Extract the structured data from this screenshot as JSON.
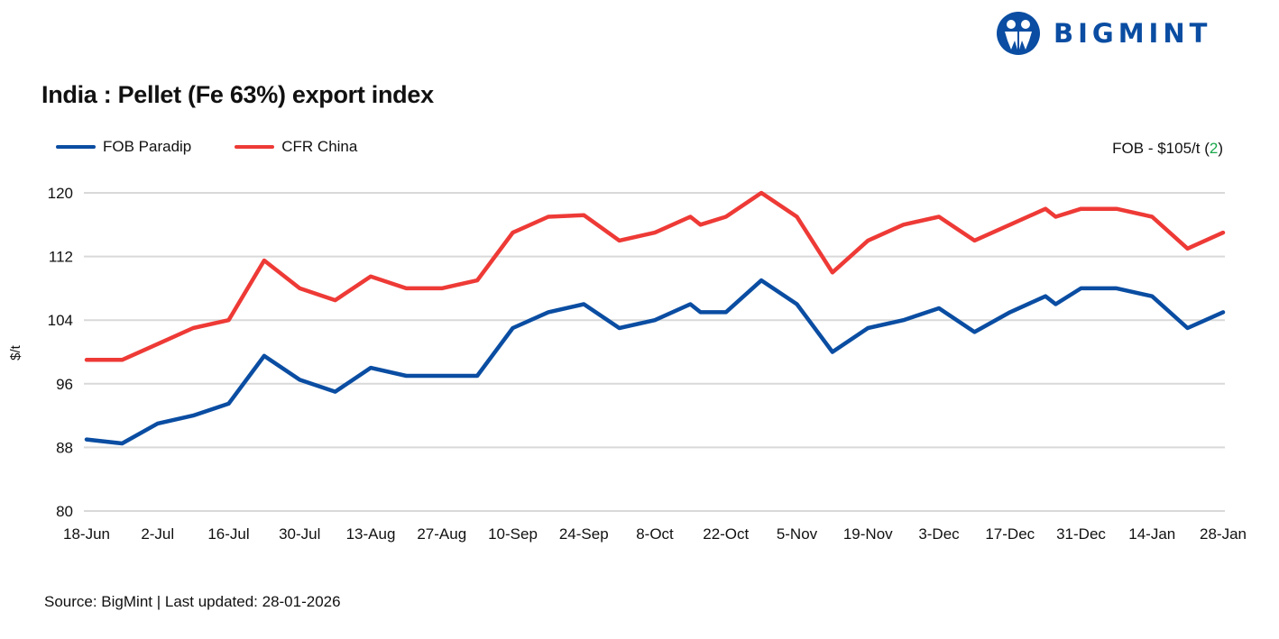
{
  "brand": {
    "name": "BIGMINT",
    "color": "#0a4da2"
  },
  "chart_data": {
    "type": "line",
    "title": "India : Pellet (Fe 63%) export index",
    "ylabel": "$/t",
    "xlabel": "",
    "ylim": [
      80,
      120
    ],
    "yticks": [
      "80",
      "88",
      "96",
      "104",
      "112",
      "120"
    ],
    "grid": true,
    "legend_position": "top-left",
    "xticks": [
      {
        "date": "2025-06-18",
        "label": "18-Jun"
      },
      {
        "date": "2025-07-02",
        "label": "2-Jul"
      },
      {
        "date": "2025-07-16",
        "label": "16-Jul"
      },
      {
        "date": "2025-07-30",
        "label": "30-Jul"
      },
      {
        "date": "2025-08-13",
        "label": "13-Aug"
      },
      {
        "date": "2025-08-27",
        "label": "27-Aug"
      },
      {
        "date": "2025-09-10",
        "label": "10-Sep"
      },
      {
        "date": "2025-09-24",
        "label": "24-Sep"
      },
      {
        "date": "2025-10-08",
        "label": "8-Oct"
      },
      {
        "date": "2025-10-22",
        "label": "22-Oct"
      },
      {
        "date": "2025-11-05",
        "label": "5-Nov"
      },
      {
        "date": "2025-11-19",
        "label": "19-Nov"
      },
      {
        "date": "2025-12-03",
        "label": "3-Dec"
      },
      {
        "date": "2025-12-17",
        "label": "17-Dec"
      },
      {
        "date": "2025-12-31",
        "label": "31-Dec"
      },
      {
        "date": "2026-01-14",
        "label": "14-Jan"
      },
      {
        "date": "2026-01-28",
        "label": "28-Jan"
      }
    ],
    "x": [
      "2025-06-18",
      "2025-06-25",
      "2025-07-02",
      "2025-07-09",
      "2025-07-16",
      "2025-07-23",
      "2025-07-30",
      "2025-08-06",
      "2025-08-13",
      "2025-08-20",
      "2025-08-27",
      "2025-09-03",
      "2025-09-10",
      "2025-09-17",
      "2025-09-24",
      "2025-10-01",
      "2025-10-08",
      "2025-10-15",
      "2025-10-17",
      "2025-10-22",
      "2025-10-29",
      "2025-11-05",
      "2025-11-12",
      "2025-11-19",
      "2025-11-26",
      "2025-12-03",
      "2025-12-10",
      "2025-12-17",
      "2025-12-24",
      "2025-12-26",
      "2025-12-31",
      "2026-01-07",
      "2026-01-14",
      "2026-01-21",
      "2026-01-28"
    ],
    "series": [
      {
        "name": "FOB Paradip",
        "color": "#0a4da2",
        "values": [
          89,
          88.5,
          91,
          92,
          93.5,
          99.5,
          96.5,
          95,
          98,
          97,
          97,
          97,
          103,
          105,
          106,
          103,
          104,
          106,
          105,
          105,
          109,
          106,
          100,
          103,
          104,
          105.5,
          102.5,
          105,
          107,
          106,
          108,
          108,
          107,
          103,
          105
        ]
      },
      {
        "name": "CFR China",
        "color": "#ee3a36",
        "values": [
          99,
          99,
          101,
          103,
          104,
          111.5,
          108,
          106.5,
          109.5,
          108,
          108,
          109,
          115,
          117,
          117.2,
          114,
          115,
          117,
          116,
          117,
          120,
          117,
          110,
          114,
          116,
          117,
          114,
          116,
          118,
          117,
          118,
          118,
          117,
          113,
          115
        ]
      }
    ],
    "annotation": {
      "text": "FOB - $105/t (",
      "change": "2",
      "close": ")",
      "change_color": "#1aa84a"
    }
  },
  "footer": {
    "source": "Source: BigMint | Last updated: 28-01-2026"
  }
}
